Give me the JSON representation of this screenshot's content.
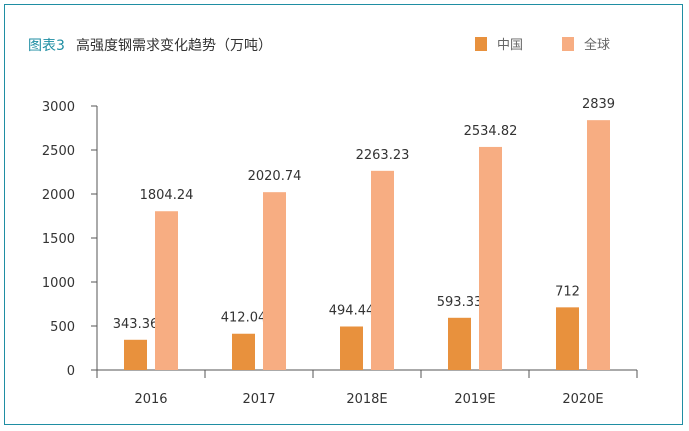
{
  "chart_data": {
    "type": "bar",
    "title_prefix": "图表3",
    "title": "高强度钢需求变化趋势（万吨）",
    "categories": [
      "2016",
      "2017",
      "2018E",
      "2019E",
      "2020E"
    ],
    "series": [
      {
        "name": "中国",
        "color": "#e8913d",
        "values": [
          343.36,
          412.04,
          494.44,
          593.33,
          712
        ],
        "labels": [
          "343.36",
          "412.04",
          "494.44",
          "593.33",
          "712"
        ]
      },
      {
        "name": "全球",
        "color": "#f7ad82",
        "values": [
          1804.24,
          2020.74,
          2263.23,
          2534.82,
          2839
        ],
        "labels": [
          "1804.24",
          "2020.74",
          "2263.23",
          "2534.82",
          "2839"
        ]
      }
    ],
    "ylim": [
      0,
      3000
    ],
    "yticks": [
      "0",
      "500",
      "1000",
      "1500",
      "2000",
      "2500",
      "3000"
    ],
    "grid": false,
    "legend_position": "top-right",
    "frame_color": "#1f8ea3"
  }
}
